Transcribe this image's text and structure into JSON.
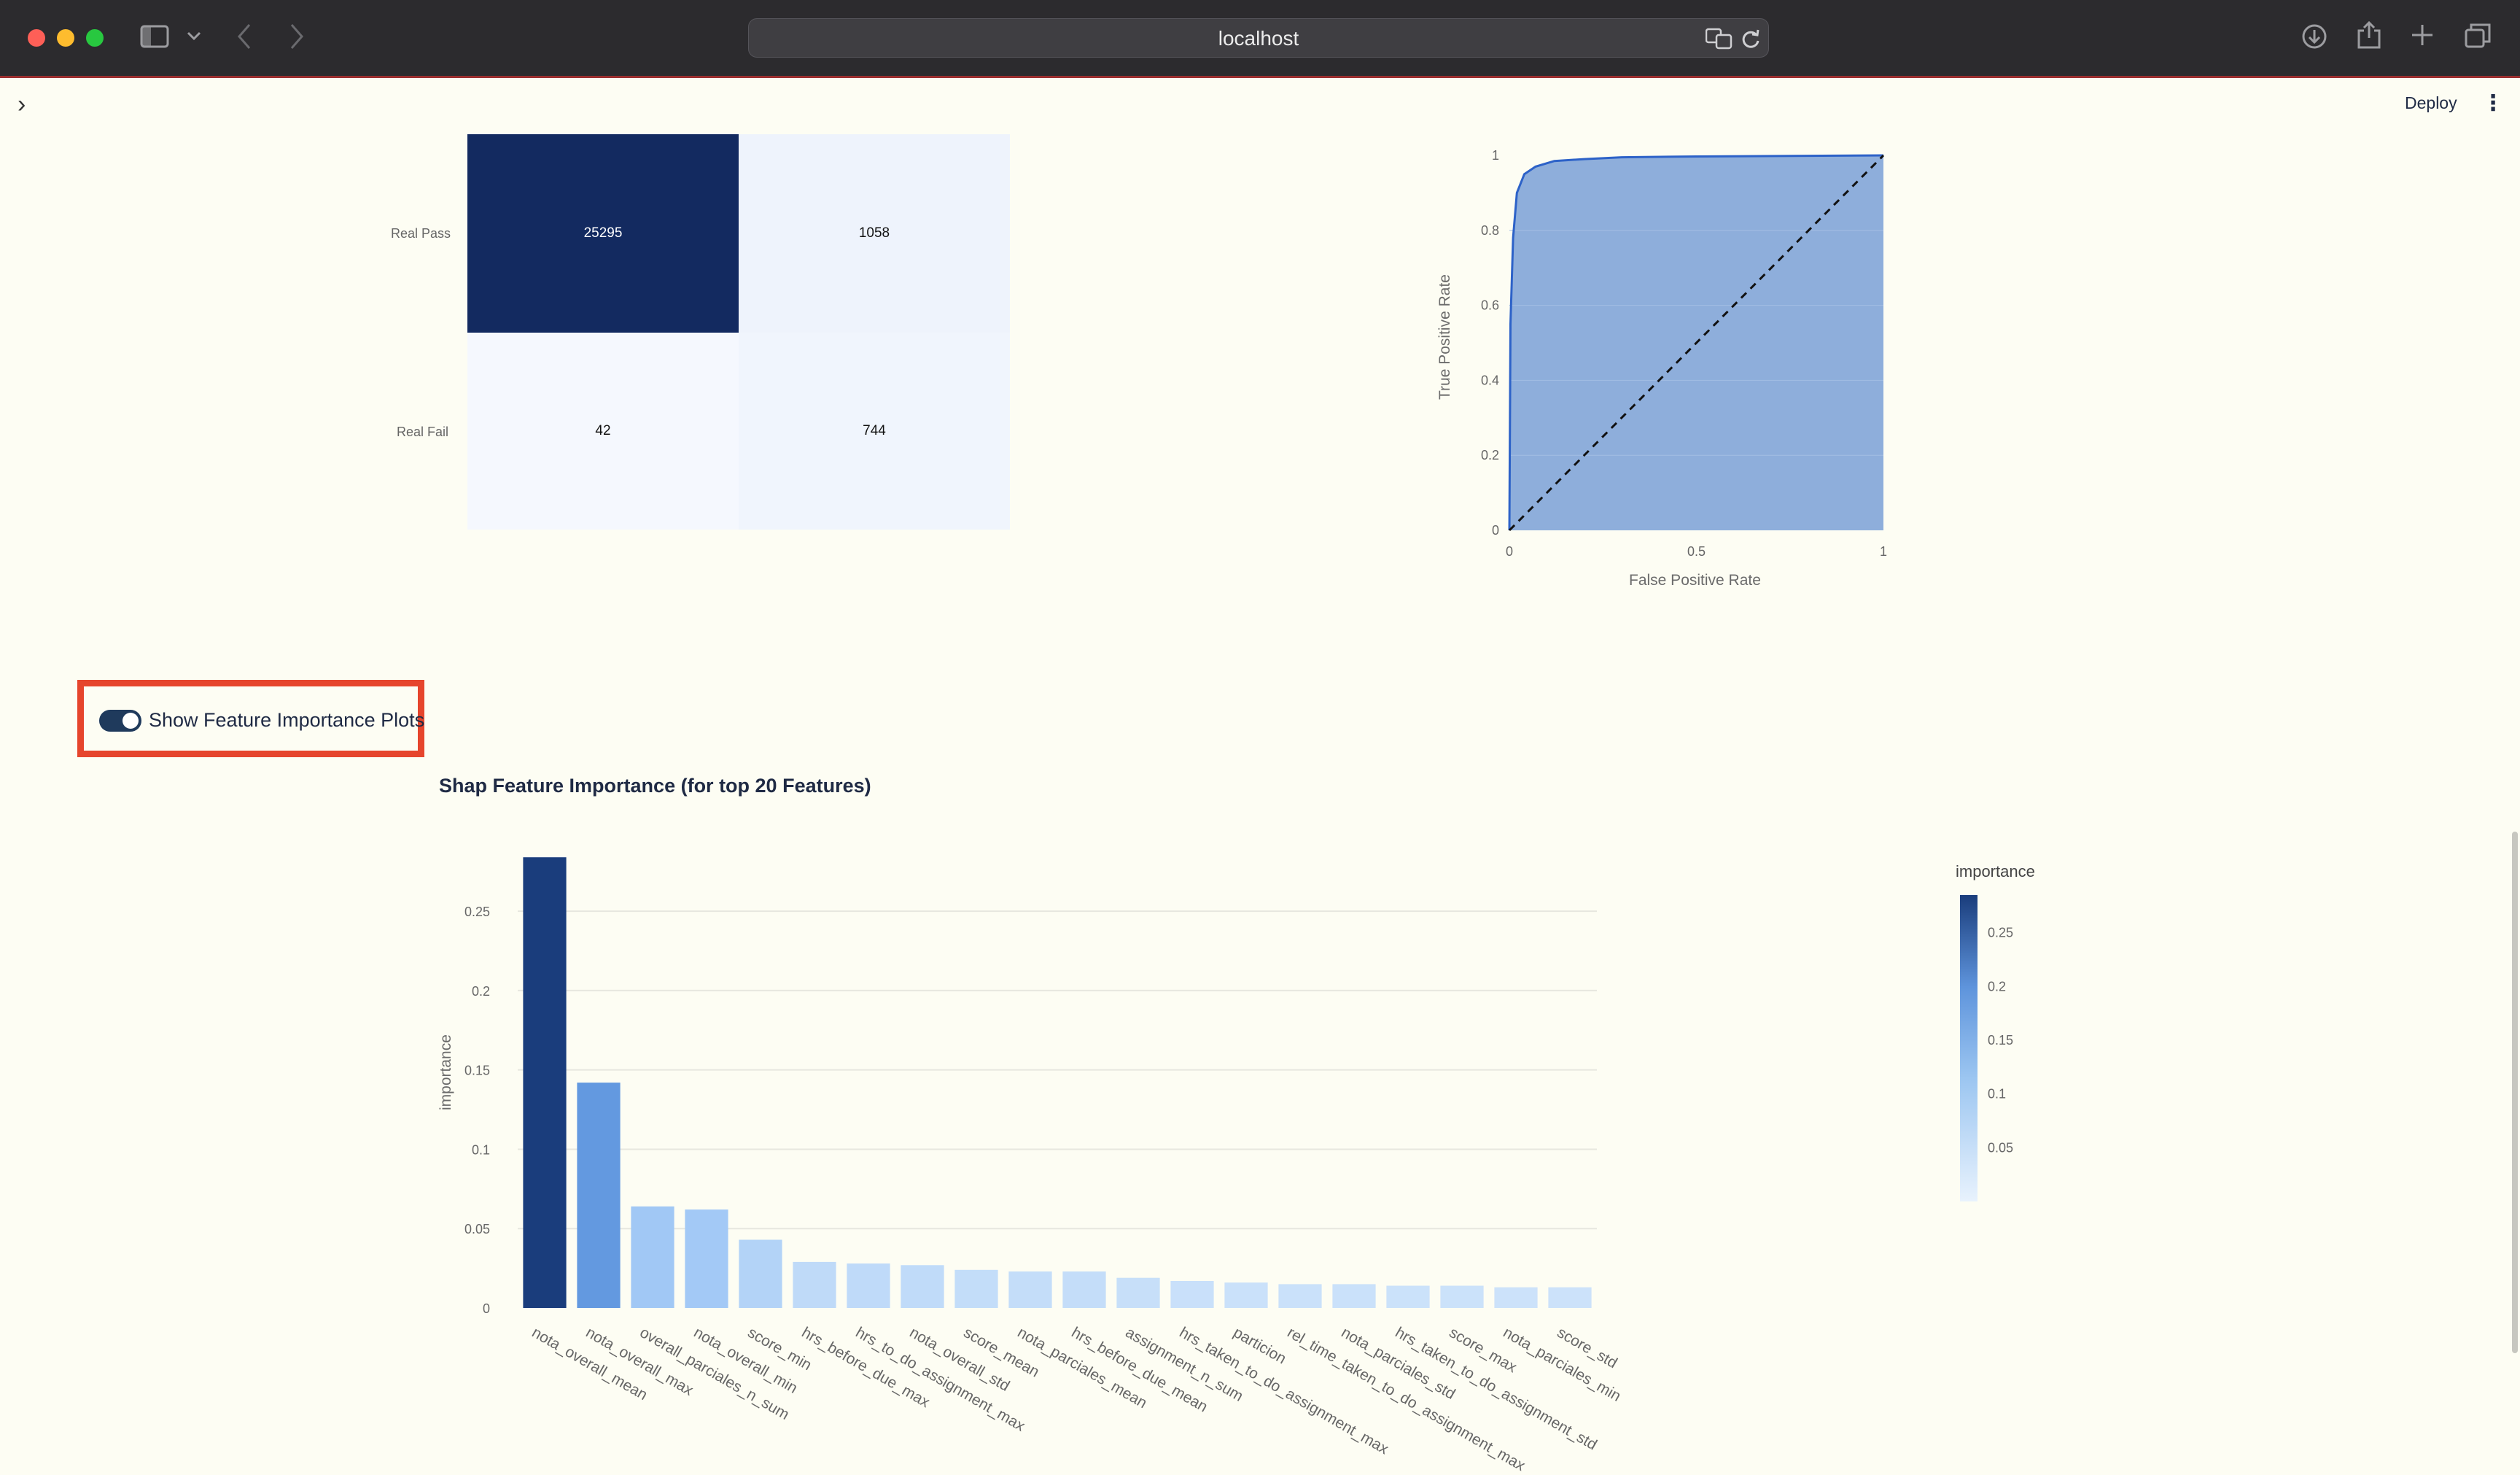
{
  "browser": {
    "url": "localhost",
    "icons": [
      "sidebar-icon",
      "chevron-down-icon",
      "back-icon",
      "forward-icon",
      "translate-icon",
      "reload-icon",
      "download-icon",
      "share-icon",
      "plus-icon",
      "tabs-icon"
    ]
  },
  "app": {
    "sidebar_expand": "›",
    "deploy_label": "Deploy",
    "menu_icon": "⋮"
  },
  "confusion": {
    "rows": [
      "Real Pass",
      "Real Fail"
    ],
    "values": [
      [
        25295,
        1058
      ],
      [
        42,
        744
      ]
    ],
    "colors": [
      [
        "#132a60",
        "#eef3fc"
      ],
      [
        "#f5f8fe",
        "#f0f5fd"
      ]
    ]
  },
  "roc": {
    "xlabel": "False Positive Rate",
    "ylabel": "True Positive Rate",
    "yticks": [
      "0",
      "0.2",
      "0.4",
      "0.6",
      "0.8",
      "1"
    ],
    "xticks": [
      "0",
      "0.5",
      "1"
    ],
    "fill_color": "#8eaedb",
    "line_color": "#2d62c8"
  },
  "toggle": {
    "label": "Show Feature Importance Plots",
    "on": true
  },
  "shap_title": "Shap Feature Importance (for top 20 Features)",
  "chart_data": {
    "type": "bar",
    "title": "",
    "xlabel": "",
    "ylabel": "importance",
    "ylim": [
      0,
      0.285
    ],
    "yticks": [
      "0",
      "0.05",
      "0.1",
      "0.15",
      "0.2",
      "0.25"
    ],
    "categories": [
      "nota_overall_mean",
      "nota_overall_max",
      "overall_parciales_n_sum",
      "nota_overall_min",
      "score_min",
      "hrs_before_due_max",
      "hrs_to_do_assignment_max",
      "nota_overall_std",
      "score_mean",
      "nota_parciales_mean",
      "hrs_before_due_mean",
      "assignment_n_sum",
      "hrs_taken_to_do_assignment_max",
      "particion",
      "rel_time_taken_to_do_assignment_max",
      "nota_parciales_std",
      "hrs_taken_to_do_assignment_std",
      "score_max",
      "nota_parciales_min",
      "score_std"
    ],
    "values": [
      0.284,
      0.142,
      0.064,
      0.062,
      0.043,
      0.029,
      0.028,
      0.027,
      0.024,
      0.023,
      0.023,
      0.019,
      0.017,
      0.016,
      0.015,
      0.015,
      0.014,
      0.014,
      0.013,
      0.013
    ],
    "colorbar": {
      "title": "importance",
      "ticks": [
        "0.25",
        "0.2",
        "0.15",
        "0.1",
        "0.05"
      ]
    },
    "color_low": "#d7e9fb",
    "color_high": "#1a3d7c"
  }
}
